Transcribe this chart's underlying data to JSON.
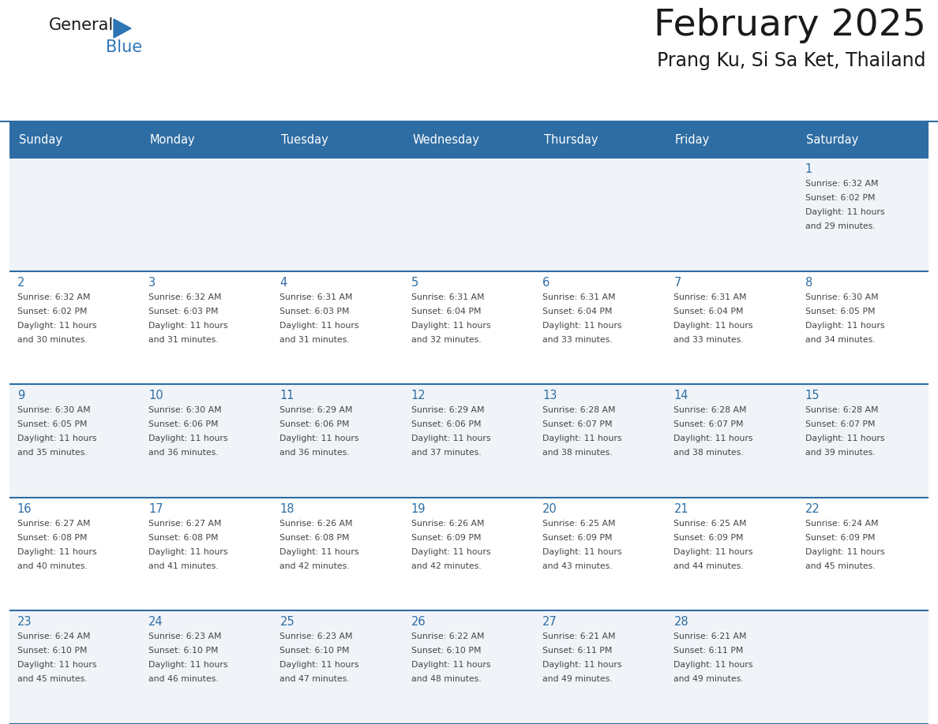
{
  "title": "February 2025",
  "subtitle": "Prang Ku, Si Sa Ket, Thailand",
  "days_of_week": [
    "Sunday",
    "Monday",
    "Tuesday",
    "Wednesday",
    "Thursday",
    "Friday",
    "Saturday"
  ],
  "header_bg_color": "#2E6DA4",
  "header_text_color": "#FFFFFF",
  "cell_bg_color_light": "#F0F4F8",
  "cell_bg_color_white": "#FFFFFF",
  "cell_text_color": "#444444",
  "day_number_color": "#2E6DA4",
  "border_color": "#2E6DA4",
  "title_color": "#1a1a1a",
  "subtitle_color": "#1a1a1a",
  "logo_general_color": "#1a1a1a",
  "logo_blue_color": "#2E75B6",
  "calendar_data": [
    [
      null,
      null,
      null,
      null,
      null,
      null,
      {
        "day": 1,
        "sunrise": "6:32 AM",
        "sunset": "6:02 PM",
        "daylight": "11 hours and 29 minutes."
      }
    ],
    [
      {
        "day": 2,
        "sunrise": "6:32 AM",
        "sunset": "6:02 PM",
        "daylight": "11 hours and 30 minutes."
      },
      {
        "day": 3,
        "sunrise": "6:32 AM",
        "sunset": "6:03 PM",
        "daylight": "11 hours and 31 minutes."
      },
      {
        "day": 4,
        "sunrise": "6:31 AM",
        "sunset": "6:03 PM",
        "daylight": "11 hours and 31 minutes."
      },
      {
        "day": 5,
        "sunrise": "6:31 AM",
        "sunset": "6:04 PM",
        "daylight": "11 hours and 32 minutes."
      },
      {
        "day": 6,
        "sunrise": "6:31 AM",
        "sunset": "6:04 PM",
        "daylight": "11 hours and 33 minutes."
      },
      {
        "day": 7,
        "sunrise": "6:31 AM",
        "sunset": "6:04 PM",
        "daylight": "11 hours and 33 minutes."
      },
      {
        "day": 8,
        "sunrise": "6:30 AM",
        "sunset": "6:05 PM",
        "daylight": "11 hours and 34 minutes."
      }
    ],
    [
      {
        "day": 9,
        "sunrise": "6:30 AM",
        "sunset": "6:05 PM",
        "daylight": "11 hours and 35 minutes."
      },
      {
        "day": 10,
        "sunrise": "6:30 AM",
        "sunset": "6:06 PM",
        "daylight": "11 hours and 36 minutes."
      },
      {
        "day": 11,
        "sunrise": "6:29 AM",
        "sunset": "6:06 PM",
        "daylight": "11 hours and 36 minutes."
      },
      {
        "day": 12,
        "sunrise": "6:29 AM",
        "sunset": "6:06 PM",
        "daylight": "11 hours and 37 minutes."
      },
      {
        "day": 13,
        "sunrise": "6:28 AM",
        "sunset": "6:07 PM",
        "daylight": "11 hours and 38 minutes."
      },
      {
        "day": 14,
        "sunrise": "6:28 AM",
        "sunset": "6:07 PM",
        "daylight": "11 hours and 38 minutes."
      },
      {
        "day": 15,
        "sunrise": "6:28 AM",
        "sunset": "6:07 PM",
        "daylight": "11 hours and 39 minutes."
      }
    ],
    [
      {
        "day": 16,
        "sunrise": "6:27 AM",
        "sunset": "6:08 PM",
        "daylight": "11 hours and 40 minutes."
      },
      {
        "day": 17,
        "sunrise": "6:27 AM",
        "sunset": "6:08 PM",
        "daylight": "11 hours and 41 minutes."
      },
      {
        "day": 18,
        "sunrise": "6:26 AM",
        "sunset": "6:08 PM",
        "daylight": "11 hours and 42 minutes."
      },
      {
        "day": 19,
        "sunrise": "6:26 AM",
        "sunset": "6:09 PM",
        "daylight": "11 hours and 42 minutes."
      },
      {
        "day": 20,
        "sunrise": "6:25 AM",
        "sunset": "6:09 PM",
        "daylight": "11 hours and 43 minutes."
      },
      {
        "day": 21,
        "sunrise": "6:25 AM",
        "sunset": "6:09 PM",
        "daylight": "11 hours and 44 minutes."
      },
      {
        "day": 22,
        "sunrise": "6:24 AM",
        "sunset": "6:09 PM",
        "daylight": "11 hours and 45 minutes."
      }
    ],
    [
      {
        "day": 23,
        "sunrise": "6:24 AM",
        "sunset": "6:10 PM",
        "daylight": "11 hours and 45 minutes."
      },
      {
        "day": 24,
        "sunrise": "6:23 AM",
        "sunset": "6:10 PM",
        "daylight": "11 hours and 46 minutes."
      },
      {
        "day": 25,
        "sunrise": "6:23 AM",
        "sunset": "6:10 PM",
        "daylight": "11 hours and 47 minutes."
      },
      {
        "day": 26,
        "sunrise": "6:22 AM",
        "sunset": "6:10 PM",
        "daylight": "11 hours and 48 minutes."
      },
      {
        "day": 27,
        "sunrise": "6:21 AM",
        "sunset": "6:11 PM",
        "daylight": "11 hours and 49 minutes."
      },
      {
        "day": 28,
        "sunrise": "6:21 AM",
        "sunset": "6:11 PM",
        "daylight": "11 hours and 49 minutes."
      },
      null
    ]
  ]
}
